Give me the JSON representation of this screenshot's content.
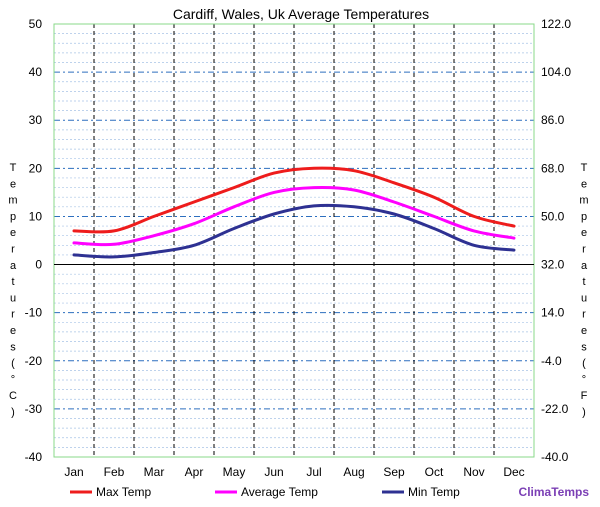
{
  "chart_data": {
    "type": "line",
    "title": "Cardiff, Wales, Uk Average Temperatures",
    "categories": [
      "Jan",
      "Feb",
      "Mar",
      "Apr",
      "May",
      "Jun",
      "Jul",
      "Aug",
      "Sep",
      "Oct",
      "Nov",
      "Dec"
    ],
    "series": [
      {
        "name": "Max Temp",
        "color": "#ee1c1c",
        "values": [
          7,
          7,
          10,
          13,
          16,
          19,
          20,
          19.5,
          17,
          14,
          10,
          8
        ]
      },
      {
        "name": "Average Temp",
        "color": "#ff00ff",
        "values": [
          4.5,
          4.2,
          6,
          8.5,
          12,
          15,
          16,
          15.5,
          13,
          10,
          7,
          5.5
        ]
      },
      {
        "name": "Min Temp",
        "color": "#2e3192",
        "values": [
          2,
          1.6,
          2.5,
          4,
          7.5,
          10.5,
          12.2,
          12,
          10.5,
          7.5,
          4,
          3
        ]
      }
    ],
    "ylim": [
      -40,
      50
    ],
    "yticks_left": [
      "50",
      "40",
      "30",
      "20",
      "10",
      "0",
      "-10",
      "-20",
      "-30",
      "-40"
    ],
    "yticks_right": [
      "122.0",
      "104.0",
      "86.0",
      "68.0",
      "50.0",
      "32.0",
      "14.0",
      "-4.0",
      "-22.0",
      "-40.0"
    ],
    "ylabel_left": [
      "T",
      "e",
      "m",
      "p",
      "e",
      "r",
      "a",
      "t",
      "u",
      "r",
      "e",
      "s",
      "(",
      "°",
      "C",
      ")"
    ],
    "ylabel_right": [
      "T",
      "e",
      "m",
      "p",
      "e",
      "r",
      "a",
      "t",
      "u",
      "r",
      "e",
      "s",
      "(",
      "°",
      "F",
      ")"
    ],
    "grid": true,
    "legend_position": "bottom",
    "brand": "ClimaTemps"
  }
}
